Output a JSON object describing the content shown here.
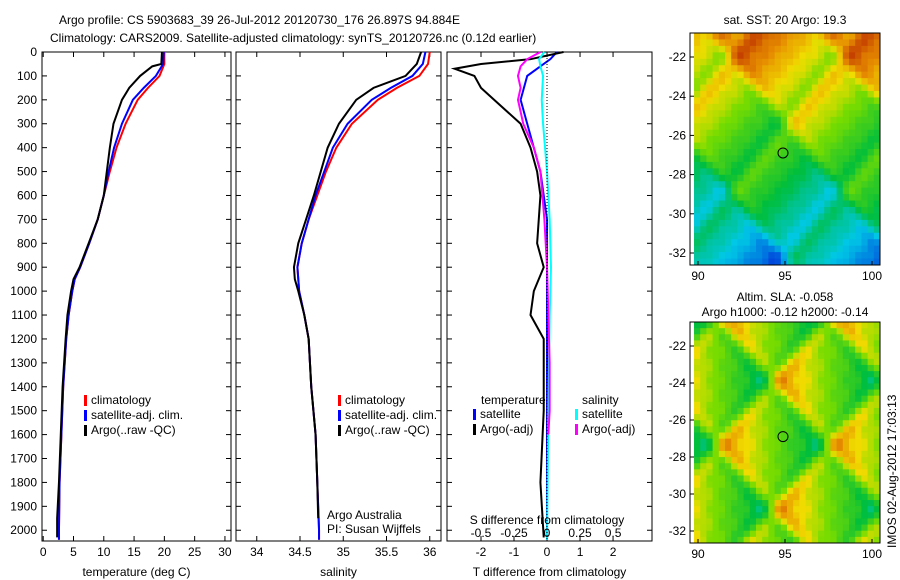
{
  "title_line1": "Argo profile: CS 5903683_39 26-Jul-2012 20120730_176 26.897S 94.884E",
  "title_line2": "Climatology: CARS2009. Satellite-adjusted climatology: synTS_20120726.nc (0.12d earlier)",
  "colors": {
    "climatology": "#ff0000",
    "satellite": "#0000ff",
    "argo": "#000000",
    "sal_satellite": "#00ffff",
    "sal_argo": "#ff00ff"
  },
  "chart_data": [
    {
      "type": "line",
      "name": "temperature",
      "xlabel": "temperature (deg C)",
      "xlim": [
        -0.2,
        31
      ],
      "ylim": [
        0,
        2045
      ],
      "xticks": [
        "0",
        "5",
        "10",
        "15",
        "20",
        "25",
        "30"
      ],
      "yticks": [
        "0",
        "100",
        "200",
        "300",
        "400",
        "500",
        "600",
        "700",
        "800",
        "900",
        "1000",
        "1100",
        "1200",
        "1300",
        "1400",
        "1500",
        "1600",
        "1700",
        "1800",
        "1900",
        "2000"
      ],
      "legend": [
        "climatology",
        "satellite-adj. clim.",
        "Argo(..raw -QC)"
      ],
      "series": [
        {
          "name": "climatology",
          "depth": [
            0,
            50,
            100,
            150,
            200,
            300,
            400,
            500,
            600,
            700,
            800,
            900,
            950,
            1000,
            1100,
            1200,
            1400,
            1600,
            1800,
            2000,
            2040
          ],
          "values": [
            20,
            20,
            19.2,
            17.3,
            15.6,
            13.6,
            12.1,
            11,
            10,
            9,
            7.6,
            6.1,
            5.2,
            4.8,
            4.2,
            3.8,
            3.3,
            3,
            2.7,
            2.6,
            2.6
          ]
        },
        {
          "name": "satellite-adj. clim.",
          "depth": [
            0,
            50,
            100,
            150,
            200,
            300,
            400,
            500,
            600,
            700,
            800,
            900,
            950,
            1000,
            1100,
            1200,
            1400,
            1600,
            1800,
            2000,
            2040
          ],
          "values": [
            19.9,
            19.8,
            18.6,
            16.6,
            14.8,
            13,
            11.7,
            10.8,
            10,
            9,
            7.6,
            6.1,
            5.2,
            4.8,
            4.2,
            3.8,
            3.3,
            3,
            2.7,
            2.6,
            2.6
          ]
        },
        {
          "name": "Argo(..raw -QC)",
          "depth": [
            0,
            50,
            60,
            100,
            150,
            200,
            300,
            400,
            500,
            600,
            700,
            800,
            900,
            950,
            1000,
            1100,
            1200,
            1400,
            1600,
            1800,
            1950,
            2030
          ],
          "values": [
            19.6,
            19.5,
            18,
            16,
            14.2,
            13,
            11.6,
            11,
            10.5,
            10,
            9,
            7.5,
            6,
            5,
            4.6,
            4,
            3.7,
            3.2,
            2.9,
            2.6,
            2.3,
            2.3
          ]
        }
      ]
    },
    {
      "type": "line",
      "name": "salinity",
      "xlabel": "salinity",
      "xlim": [
        33.76,
        36.13
      ],
      "ylim": [
        0,
        2045
      ],
      "xticks": [
        "34",
        "34.5",
        "35",
        "35.5",
        "36"
      ],
      "legend": [
        "climatology",
        "satellite-adj. clim.",
        "Argo(..raw -QC)"
      ],
      "annotation": [
        "Argo Australia",
        "PI: Susan Wijffels"
      ],
      "series": [
        {
          "name": "climatology",
          "depth": [
            0,
            50,
            100,
            150,
            200,
            300,
            400,
            500,
            600,
            700,
            800,
            900,
            1000,
            1100,
            1200,
            1400,
            1600,
            1800,
            2000,
            2040
          ],
          "values": [
            36,
            35.98,
            35.88,
            35.62,
            35.4,
            35.1,
            34.92,
            34.8,
            34.7,
            34.6,
            34.52,
            34.47,
            34.49,
            34.55,
            34.6,
            34.63,
            34.68,
            34.7,
            34.72,
            34.72
          ]
        },
        {
          "name": "satellite-adj. clim.",
          "depth": [
            0,
            50,
            100,
            150,
            200,
            300,
            400,
            500,
            600,
            700,
            800,
            900,
            1000,
            1100,
            1200,
            1400,
            1600,
            1800,
            2000,
            2040
          ],
          "values": [
            35.95,
            35.92,
            35.8,
            35.55,
            35.33,
            35.05,
            34.88,
            34.78,
            34.68,
            34.6,
            34.52,
            34.47,
            34.49,
            34.55,
            34.6,
            34.63,
            34.68,
            34.7,
            34.72,
            34.72
          ]
        },
        {
          "name": "Argo(..raw -QC)",
          "depth": [
            0,
            50,
            100,
            150,
            200,
            300,
            400,
            500,
            600,
            700,
            800,
            900,
            950,
            1000,
            1100,
            1200,
            1400,
            1600,
            1800,
            1950
          ],
          "values": [
            35.9,
            35.85,
            35.72,
            35.35,
            35.15,
            34.95,
            34.82,
            34.74,
            34.66,
            34.57,
            34.48,
            34.43,
            34.44,
            34.48,
            34.55,
            34.6,
            34.63,
            34.68,
            34.7,
            34.71
          ]
        }
      ]
    },
    {
      "type": "line",
      "name": "difference",
      "xlabel": "T difference from climatology",
      "x2label": "S difference from climatology",
      "xlim": [
        -3.03,
        3.18
      ],
      "ylim": [
        0,
        2045
      ],
      "xticks": [
        "-2",
        "-1",
        "0",
        "1",
        "2"
      ],
      "x2ticks": [
        "-0.5",
        "-0.25",
        "0",
        "0.25",
        "0.5"
      ],
      "legend_temperature": {
        "title": "temperature",
        "items": [
          "satellite",
          "Argo(-adj)"
        ]
      },
      "legend_salinity": {
        "title": "salinity",
        "items": [
          "satellite",
          "Argo(-adj)"
        ]
      },
      "series": [
        {
          "name": "T satellite",
          "depth": [
            0,
            30,
            60,
            100,
            150,
            200,
            300,
            400,
            500,
            700,
            900,
            1100,
            1500,
            2040
          ],
          "values": [
            0.3,
            0.1,
            -0.2,
            -0.6,
            -0.7,
            -0.8,
            -0.6,
            -0.4,
            -0.2,
            0,
            0,
            0,
            0,
            0
          ]
        },
        {
          "name": "T Argo(-adj)",
          "depth": [
            0,
            30,
            50,
            70,
            100,
            150,
            200,
            300,
            400,
            500,
            600,
            800,
            900,
            1000,
            1100,
            1200,
            1500,
            1800,
            2030
          ],
          "values": [
            0.5,
            -0.5,
            -2,
            -2.8,
            -2.2,
            -2,
            -1.6,
            -0.8,
            -0.5,
            -0.3,
            -0.2,
            -0.3,
            -0.1,
            -0.4,
            -0.5,
            -0.1,
            -0.1,
            -0.2,
            -0.1
          ]
        },
        {
          "name": "S satellite",
          "depth": [
            0,
            30,
            60,
            100,
            200,
            300,
            500,
            700,
            900,
            1100,
            1500,
            2040
          ],
          "values": [
            -0.02,
            -0.06,
            -0.05,
            -0.03,
            -0.04,
            -0.03,
            0,
            0.02,
            0.03,
            0.02,
            0.01,
            0
          ]
        },
        {
          "name": "S Argo(-adj)",
          "depth": [
            0,
            30,
            60,
            100,
            150,
            200,
            300,
            400,
            500,
            700,
            900,
            1100,
            1300,
            1500,
            1600
          ],
          "values": [
            -0.05,
            -0.15,
            -0.2,
            -0.22,
            -0.2,
            -0.22,
            -0.18,
            -0.1,
            -0.05,
            -0.02,
            0,
            0.01,
            0.02,
            0.02,
            0.01
          ]
        }
      ]
    },
    {
      "type": "heatmap",
      "name": "sst-map",
      "title": "sat. SST: 20 Argo: 19.3",
      "xticks": [
        "90",
        "95",
        "100"
      ],
      "yticks": [
        "-22",
        "-24",
        "-26",
        "-28",
        "-30",
        "-32"
      ],
      "marker": {
        "lon": 94.884,
        "lat": -26.897
      }
    },
    {
      "type": "heatmap",
      "name": "sla-map",
      "title1": "Altim. SLA: -0.058",
      "title2": "Argo h1000: -0.12 h2000: -0.14",
      "xticks": [
        "90",
        "95",
        "100"
      ],
      "yticks": [
        "-22",
        "-24",
        "-26",
        "-28",
        "-30",
        "-32"
      ],
      "marker": {
        "lon": 94.884,
        "lat": -26.897
      }
    }
  ],
  "footer": "IMOS 02-Aug-2012 17:03:13"
}
